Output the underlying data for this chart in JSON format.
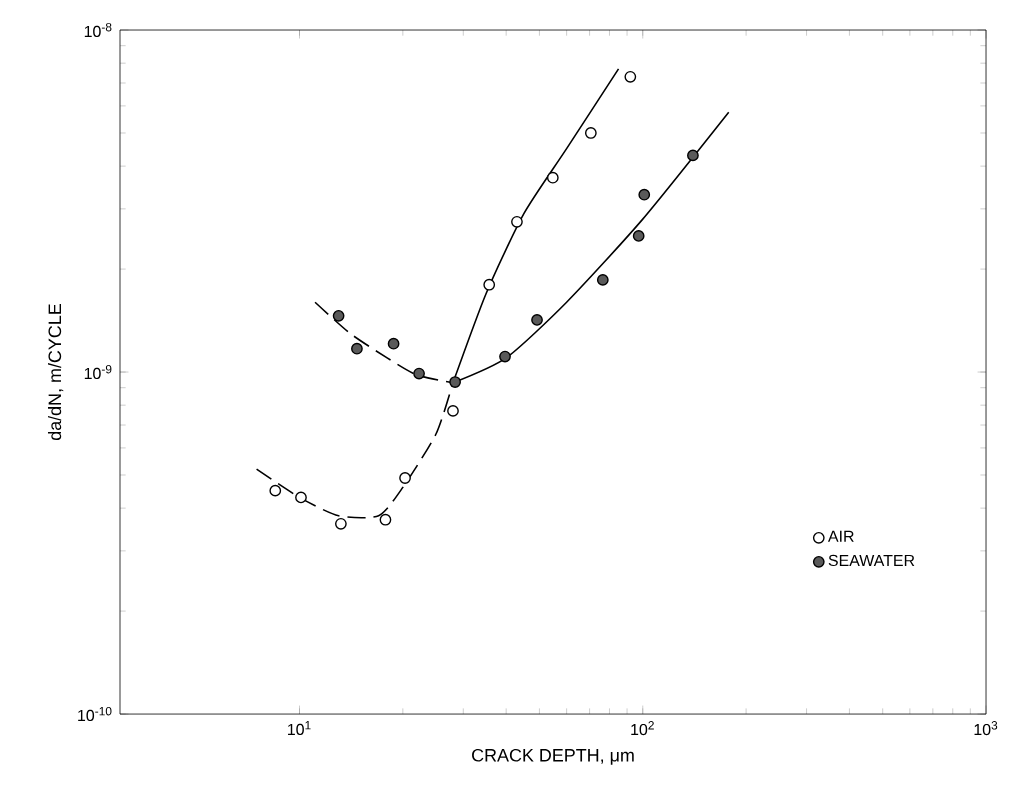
{
  "chart_data": {
    "type": "scatter",
    "xlabel": "CRACK DEPTH, μm",
    "ylabel": "da/dN,  m/CYCLE",
    "log": "xy",
    "xlim": [
      3,
      1000
    ],
    "ylim": [
      1e-10,
      1e-08
    ],
    "xticks": [
      {
        "value": 10,
        "label": "10$^{1}$"
      },
      {
        "value": 100,
        "label": "10$^{2}$"
      },
      {
        "value": 1000,
        "label": "10$^{3}$"
      }
    ],
    "yticks": [
      {
        "value": 1e-10,
        "label": "10$^{-10}$"
      },
      {
        "value": 1e-09,
        "label": "10$^{-9}$"
      },
      {
        "value": 1e-08,
        "label": "10$^{-8}$"
      }
    ],
    "legend": "bottom right",
    "series": [
      {
        "name": "AIR",
        "marker": "circle",
        "color": "#ffffff",
        "x": [
          8.5,
          10.1,
          13.2,
          17.8,
          20.3,
          28,
          35.7,
          43,
          54.7,
          70.6,
          92
        ],
        "values": [
          4.5e-10,
          4.3e-10,
          3.6e-10,
          3.7e-10,
          4.9e-10,
          7.7e-10,
          1.8e-09,
          2.75e-09,
          3.7e-09,
          5e-09,
          7.3e-09
        ]
      },
      {
        "name": "SEAWATER",
        "marker": "circle",
        "color": "#5a5a5a",
        "x": [
          13,
          14.7,
          18.8,
          22.3,
          28.4,
          39.7,
          49.2,
          76.5,
          97.3,
          101,
          140
        ],
        "values": [
          1.46e-09,
          1.17e-09,
          1.21e-09,
          9.9e-10,
          9.35e-10,
          1.11e-09,
          1.42e-09,
          1.86e-09,
          2.5e-09,
          3.3e-09,
          4.3e-09
        ]
      },
      {
        "type": "line",
        "marker": "none",
        "color": "#000000",
        "line_style": "dashed",
        "x": [
          7.5,
          10,
          13,
          17,
          20,
          25,
          28
        ],
        "values": [
          5.2e-10,
          4.3e-10,
          3.8e-10,
          3.8e-10,
          4.6e-10,
          6.6e-10,
          9.3e-10
        ]
      },
      {
        "type": "line",
        "marker": "none",
        "color": "#000000",
        "line_style": "solid",
        "x": [
          28,
          35,
          45,
          60,
          85
        ],
        "values": [
          9.3e-10,
          1.7e-09,
          2.9e-09,
          4.5e-09,
          7.7e-09
        ]
      },
      {
        "type": "line",
        "marker": "none",
        "color": "#000000",
        "line_style": "dashed",
        "x": [
          11.1,
          14,
          18,
          22,
          28
        ],
        "values": [
          1.6e-09,
          1.3e-09,
          1.1e-09,
          9.8e-10,
          9.3e-10
        ]
      },
      {
        "type": "line",
        "marker": "none",
        "color": "#000000",
        "line_style": "solid",
        "x": [
          28,
          40,
          60,
          100,
          178
        ],
        "values": [
          9.3e-10,
          1.1e-09,
          1.6e-09,
          2.8e-09,
          5.75e-09
        ]
      }
    ]
  }
}
